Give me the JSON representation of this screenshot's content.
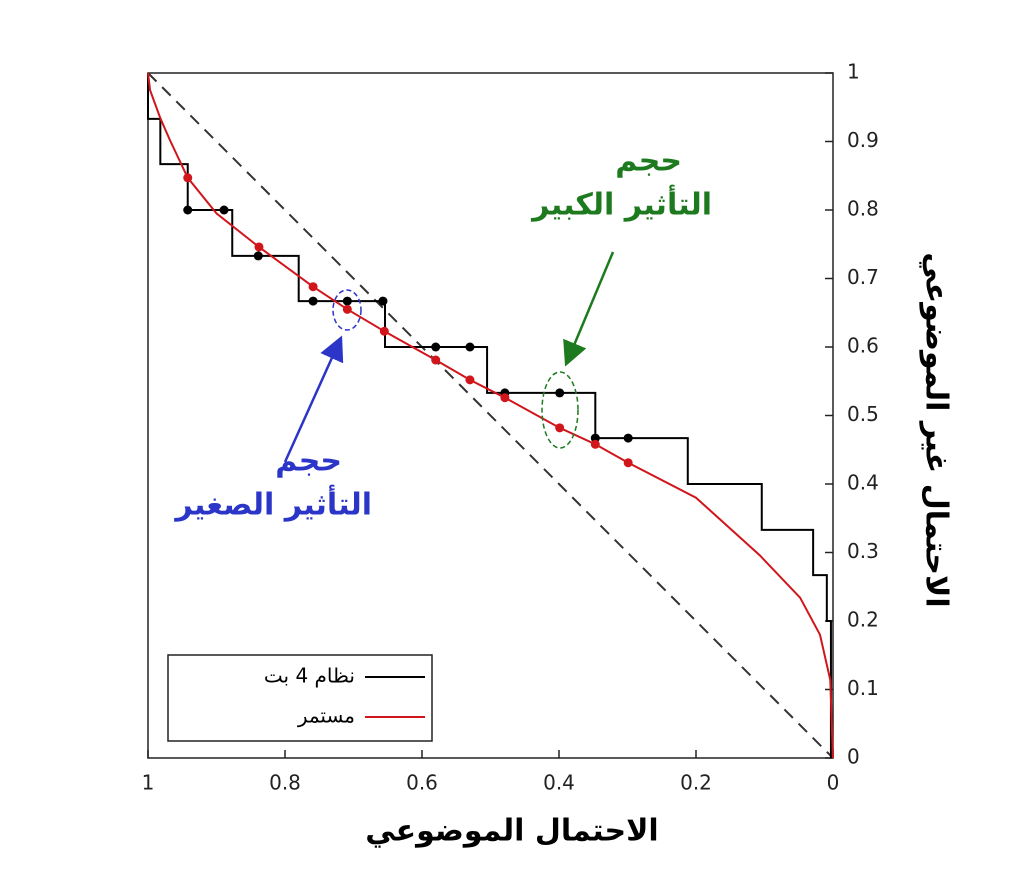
{
  "chart_data": {
    "type": "line",
    "x_label": "الاحتمال الموضوعي",
    "y_label": "الاحتمال غير الموضوعي",
    "xlim": [
      1,
      0
    ],
    "ylim": [
      0,
      1
    ],
    "xticks": [
      1,
      0.8,
      0.6,
      0.4,
      0.2,
      0
    ],
    "yticks": [
      0,
      0.1,
      0.2,
      0.3,
      0.4,
      0.5,
      0.6,
      0.7,
      0.8,
      0.9,
      1
    ],
    "legend": "bottom-left",
    "series": [
      {
        "name": "نظام 4 بت",
        "color": "#000000",
        "x": [
          1,
          1,
          0.982,
          0.982,
          0.942,
          0.942,
          0.877,
          0.877,
          0.78,
          0.78,
          0.654,
          0.654,
          0.505,
          0.505,
          0.347,
          0.347,
          0.212,
          0.212,
          0.104,
          0.104,
          0.029,
          0.029,
          0.009,
          0.009,
          0.003,
          0.003
        ],
        "values": [
          1,
          0.933,
          0.933,
          0.867,
          0.867,
          0.8,
          0.8,
          0.733,
          0.733,
          0.667,
          0.667,
          0.6,
          0.6,
          0.533,
          0.533,
          0.467,
          0.467,
          0.4,
          0.4,
          0.333,
          0.333,
          0.267,
          0.267,
          0.2,
          0.2,
          0
        ],
        "markers": {
          "x": [
            0.942,
            0.889,
            0.839,
            0.759,
            0.709,
            0.657,
            0.58,
            0.53,
            0.479,
            0.399,
            0.347,
            0.299
          ],
          "values": [
            0.8,
            0.8,
            0.733,
            0.667,
            0.667,
            0.667,
            0.6,
            0.6,
            0.533,
            0.533,
            0.467,
            0.467
          ]
        }
      },
      {
        "name": "مستمر",
        "color": "#d0161b",
        "x": [
          1,
          0.997,
          0.982,
          0.968,
          0.942,
          0.9,
          0.838,
          0.759,
          0.709,
          0.655,
          0.58,
          0.53,
          0.479,
          0.399,
          0.347,
          0.299,
          0.2,
          0.107,
          0.048,
          0.019,
          0.004,
          0
        ],
        "values": [
          1,
          0.975,
          0.934,
          0.902,
          0.847,
          0.795,
          0.746,
          0.688,
          0.655,
          0.623,
          0.581,
          0.552,
          0.526,
          0.482,
          0.458,
          0.431,
          0.38,
          0.296,
          0.234,
          0.18,
          0.114,
          0
        ],
        "markers": {
          "x": [
            0.942,
            0.838,
            0.759,
            0.709,
            0.655,
            0.58,
            0.53,
            0.479,
            0.399,
            0.347,
            0.299
          ],
          "values": [
            0.847,
            0.746,
            0.688,
            0.655,
            0.623,
            0.581,
            0.552,
            0.526,
            0.482,
            0.458,
            0.431
          ]
        }
      }
    ],
    "reference_line": {
      "x": [
        1,
        0
      ],
      "values": [
        1,
        0
      ],
      "color": "#333333"
    },
    "annotations": [
      {
        "lines": [
          "حجم",
          "التأثير الصغير"
        ],
        "color": "#2b35c8"
      },
      {
        "lines": [
          "حجم",
          "التأثير الكبير"
        ],
        "color": "#1e7a1e"
      }
    ]
  }
}
